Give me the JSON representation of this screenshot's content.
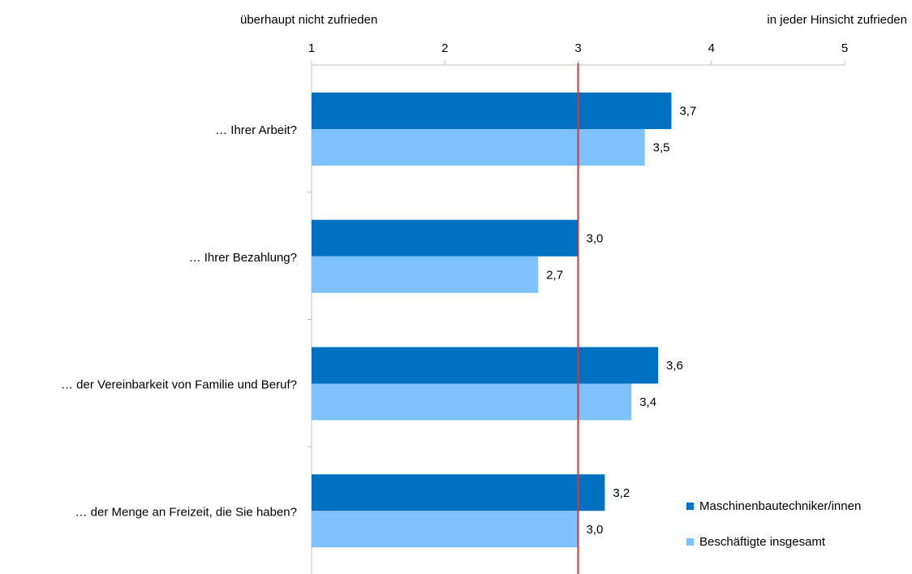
{
  "annotations": {
    "left": "überhaupt nicht zufrieden",
    "right": "in jeder Hinsicht zufrieden"
  },
  "colors": {
    "series_dark": "#0070C0",
    "series_light": "#7DC1FF",
    "reference_line": "#E03030",
    "axis": "#BFBFBF"
  },
  "chart_data": {
    "type": "bar",
    "orientation": "horizontal",
    "categories": [
      "… Ihrer Arbeit?",
      "…  Ihrer Bezahlung?",
      "… der Vereinbarkeit von Familie und Beruf?",
      "… der Menge an Freizeit, die Sie haben?"
    ],
    "series": [
      {
        "name": "Maschinenbautechniker/innen",
        "values": [
          3.7,
          3.0,
          3.6,
          3.2
        ],
        "labels": [
          "3,7",
          "3,0",
          "3,6",
          "3,2"
        ]
      },
      {
        "name": "Beschäftigte insgesamt",
        "values": [
          3.5,
          2.7,
          3.4,
          3.0
        ],
        "labels": [
          "3,5",
          "2,7",
          "3,4",
          "3,0"
        ]
      }
    ],
    "xlim": [
      1,
      5
    ],
    "xticks": [
      "1",
      "2",
      "3",
      "4",
      "5"
    ],
    "reference_line": 3,
    "grid": false,
    "legend_position": "bottom-right"
  }
}
